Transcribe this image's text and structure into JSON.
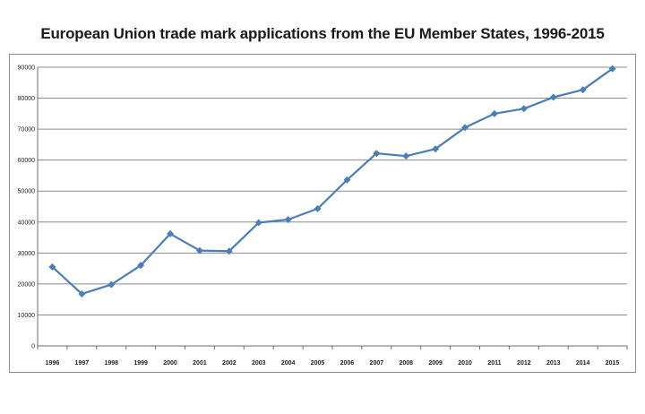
{
  "chart_data": {
    "type": "line",
    "title": "European Union trade mark applications from the EU Member States, 1996-2015",
    "xlabel": "",
    "ylabel": "",
    "categories": [
      "1996",
      "1997",
      "1998",
      "1999",
      "2000",
      "2001",
      "2002",
      "2003",
      "2004",
      "2005",
      "2006",
      "2007",
      "2008",
      "2009",
      "2010",
      "2011",
      "2012",
      "2013",
      "2014",
      "2015"
    ],
    "series": [
      {
        "values": [
          25500,
          16800,
          19800,
          26000,
          36200,
          30800,
          30600,
          39800,
          40800,
          44300,
          53600,
          62200,
          61300,
          63600,
          70500,
          75000,
          76600,
          80300,
          82700,
          89500
        ]
      }
    ],
    "ylim": [
      0,
      90000
    ],
    "yticks": [
      0,
      10000,
      20000,
      30000,
      40000,
      50000,
      60000,
      70000,
      80000,
      90000
    ],
    "grid": true,
    "legend": "none",
    "line_color": "#4a7ebb",
    "grid_color": "#8c8c8c"
  }
}
